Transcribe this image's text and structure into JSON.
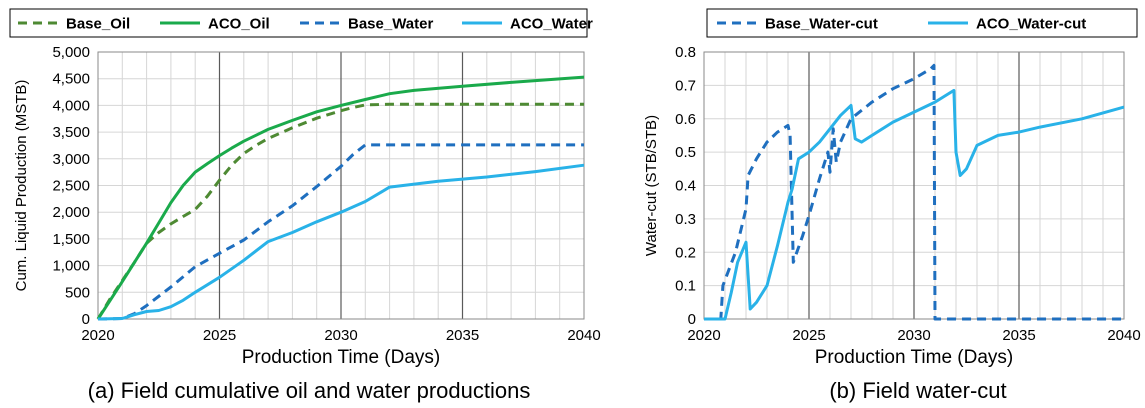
{
  "chart_data": [
    {
      "type": "line",
      "caption": "(a) Field cumulative oil and water  productions",
      "xlabel": "Production Time (Days)",
      "ylabel": "Cum. Liquid Production (MSTB)",
      "xlim": [
        2020,
        2040
      ],
      "ylim": [
        0,
        5000
      ],
      "xticks": [
        2020,
        2025,
        2030,
        2035,
        2040
      ],
      "yticks": [
        0,
        500,
        1000,
        1500,
        2000,
        2500,
        3000,
        3500,
        4000,
        4500,
        5000
      ],
      "ytick_labels": [
        "0",
        "500",
        "1,000",
        "1,500",
        "2,000",
        "2,500",
        "3,000",
        "3,500",
        "4,000",
        "4,500",
        "5,000"
      ],
      "grid": true,
      "legend_position": "top",
      "series": [
        {
          "name": "Base_Oil",
          "color": "#4e8a33",
          "dash": true,
          "x": [
            2020,
            2020.5,
            2021,
            2021.5,
            2022,
            2022.5,
            2023,
            2023.5,
            2024,
            2024.5,
            2025,
            2025.5,
            2026,
            2026.5,
            2027,
            2028,
            2029,
            2030,
            2030.5,
            2031,
            2032,
            2035,
            2038,
            2040
          ],
          "y": [
            0,
            380,
            720,
            1060,
            1420,
            1620,
            1780,
            1920,
            2050,
            2300,
            2600,
            2880,
            3100,
            3250,
            3380,
            3580,
            3760,
            3900,
            3960,
            4010,
            4020,
            4020,
            4020,
            4020
          ]
        },
        {
          "name": "ACO_Oil",
          "color": "#1aaa4b",
          "dash": false,
          "x": [
            2020,
            2020.5,
            2021,
            2021.5,
            2022,
            2022.5,
            2023,
            2023.5,
            2024,
            2024.5,
            2025,
            2025.5,
            2026,
            2027,
            2028,
            2029,
            2030,
            2031,
            2032,
            2033,
            2035,
            2037,
            2040
          ],
          "y": [
            0,
            350,
            700,
            1060,
            1420,
            1800,
            2180,
            2500,
            2750,
            2910,
            3060,
            3200,
            3330,
            3550,
            3720,
            3880,
            4000,
            4110,
            4220,
            4280,
            4360,
            4430,
            4530
          ]
        },
        {
          "name": "Base_Water",
          "color": "#1f6fbf",
          "dash": true,
          "x": [
            2020,
            2021,
            2021.5,
            2022,
            2023,
            2024,
            2025,
            2026,
            2027,
            2028,
            2029,
            2030,
            2030.5,
            2031,
            2035,
            2040
          ],
          "y": [
            0,
            10,
            100,
            250,
            600,
            980,
            1230,
            1480,
            1820,
            2120,
            2480,
            2860,
            3080,
            3260,
            3260,
            3260
          ]
        },
        {
          "name": "ACO_Water",
          "color": "#29b2e8",
          "dash": false,
          "x": [
            2020,
            2021,
            2021.5,
            2022,
            2022.5,
            2023,
            2023.5,
            2024,
            2025,
            2026,
            2027,
            2028,
            2029,
            2030,
            2031,
            2032,
            2034,
            2036,
            2038,
            2040
          ],
          "y": [
            0,
            10,
            80,
            140,
            160,
            230,
            350,
            500,
            780,
            1100,
            1450,
            1620,
            1820,
            2000,
            2200,
            2470,
            2580,
            2660,
            2760,
            2880
          ]
        }
      ]
    },
    {
      "type": "line",
      "caption": "(b) Field water-cut",
      "xlabel": "Production Time (Days)",
      "ylabel": "Water-cut (STB/STB)",
      "xlim": [
        2020,
        2040
      ],
      "ylim": [
        0,
        0.8
      ],
      "xticks": [
        2020,
        2025,
        2030,
        2035,
        2040
      ],
      "yticks": [
        0,
        0.1,
        0.2,
        0.3,
        0.4,
        0.5,
        0.6,
        0.7,
        0.8
      ],
      "ytick_labels": [
        "0",
        "0.1",
        "0.2",
        "0.3",
        "0.4",
        "0.5",
        "0.6",
        "0.7",
        "0.8"
      ],
      "grid": true,
      "legend_position": "top",
      "series": [
        {
          "name": "Base_Water-cut",
          "color": "#1f6fbf",
          "dash": true,
          "x": [
            2020,
            2020.8,
            2020.9,
            2021.5,
            2022,
            2022.1,
            2022.5,
            2023,
            2023.5,
            2024,
            2024.1,
            2024.25,
            2024.7,
            2025,
            2025.5,
            2025.9,
            2026,
            2026.15,
            2026.3,
            2026.5,
            2027,
            2028,
            2029,
            2030,
            2030.8,
            2030.95,
            2031,
            2035,
            2040
          ],
          "y": [
            0,
            0,
            0.1,
            0.2,
            0.33,
            0.43,
            0.48,
            0.53,
            0.56,
            0.58,
            0.55,
            0.17,
            0.25,
            0.31,
            0.42,
            0.5,
            0.44,
            0.57,
            0.47,
            0.53,
            0.6,
            0.65,
            0.69,
            0.72,
            0.75,
            0.76,
            0,
            0,
            0
          ]
        },
        {
          "name": "ACO_Water-cut",
          "color": "#29b2e8",
          "dash": false,
          "x": [
            2020,
            2021,
            2021.3,
            2021.6,
            2022,
            2022.2,
            2022.5,
            2023,
            2023.5,
            2024,
            2024.2,
            2024.5,
            2025,
            2025.5,
            2026,
            2026.5,
            2027,
            2027.2,
            2027.5,
            2028,
            2029,
            2030,
            2031,
            2031.9,
            2032,
            2032.2,
            2032.5,
            2033,
            2034,
            2035,
            2036,
            2038,
            2040
          ],
          "y": [
            0,
            0,
            0.08,
            0.17,
            0.23,
            0.03,
            0.05,
            0.1,
            0.22,
            0.35,
            0.39,
            0.48,
            0.5,
            0.53,
            0.57,
            0.61,
            0.64,
            0.54,
            0.53,
            0.55,
            0.59,
            0.62,
            0.65,
            0.685,
            0.5,
            0.43,
            0.45,
            0.52,
            0.55,
            0.56,
            0.575,
            0.6,
            0.635
          ]
        }
      ]
    }
  ]
}
